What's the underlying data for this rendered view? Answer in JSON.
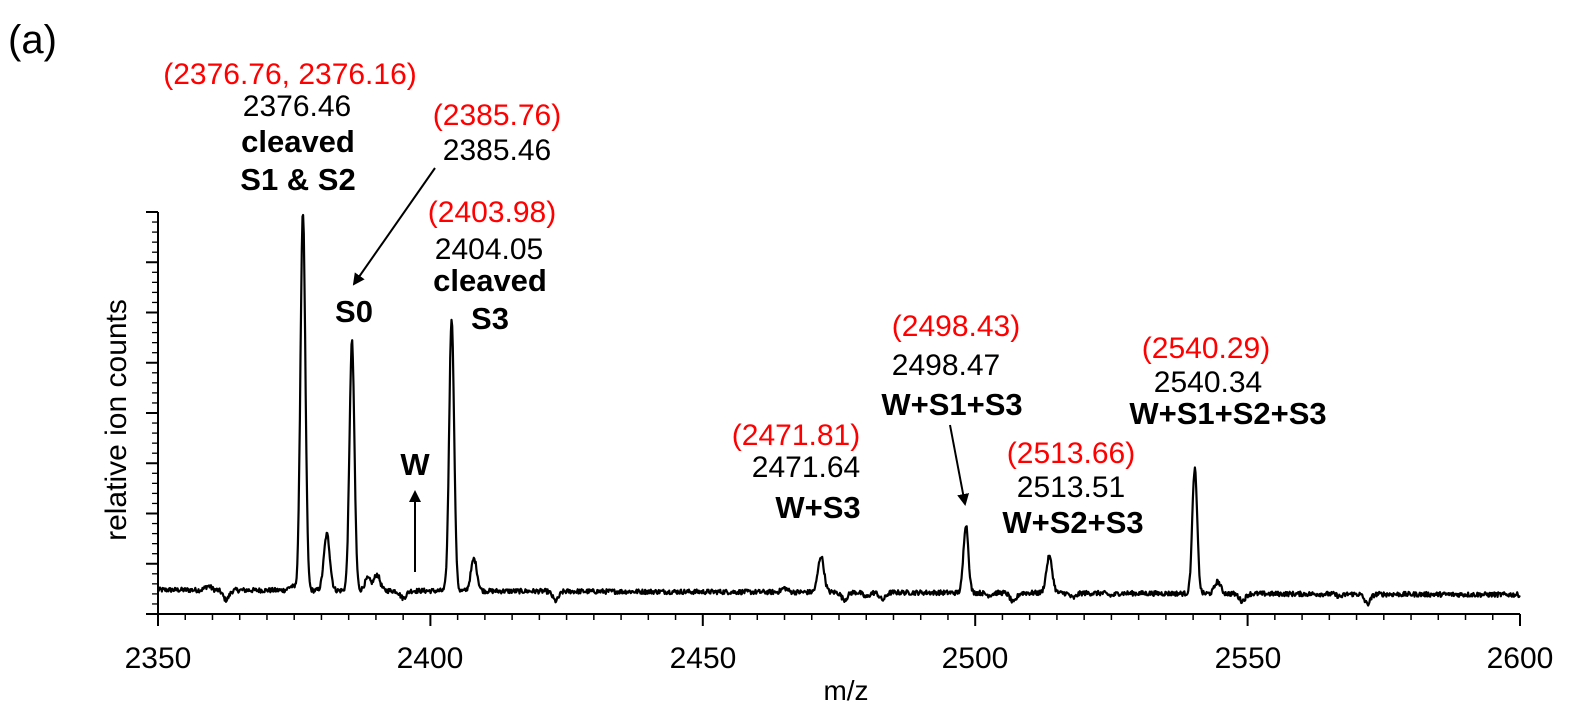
{
  "panel_label": "(a)",
  "chart_data": {
    "type": "line",
    "title": "",
    "xlabel": "m/z",
    "ylabel": "relative ion counts",
    "xlim": [
      2350,
      2600
    ],
    "ylim": [
      0,
      1.0
    ],
    "x_ticks": [
      "2350",
      "2400",
      "2450",
      "2500",
      "2550",
      "2600"
    ],
    "grid": false,
    "legend": "none",
    "colors": {
      "trace": "#000000",
      "predicted": "#ff0000",
      "measured": "#000000"
    },
    "baseline": 0.06,
    "peaks": [
      {
        "mz": 2355.5,
        "height": 0.06
      },
      {
        "mz": 2359.2,
        "height": 0.07
      },
      {
        "mz": 2362.5,
        "height": 0.02
      },
      {
        "mz": 2374.5,
        "height": 0.07
      },
      {
        "mz": 2376.6,
        "height": 1.0
      },
      {
        "mz": 2381.0,
        "height": 0.2
      },
      {
        "mz": 2385.6,
        "height": 0.68
      },
      {
        "mz": 2388.5,
        "height": 0.09
      },
      {
        "mz": 2390.2,
        "height": 0.1
      },
      {
        "mz": 2395.0,
        "height": 0.03
      },
      {
        "mz": 2403.9,
        "height": 0.74
      },
      {
        "mz": 2408.0,
        "height": 0.14
      },
      {
        "mz": 2423.0,
        "height": 0.02
      },
      {
        "mz": 2465.0,
        "height": 0.07
      },
      {
        "mz": 2471.7,
        "height": 0.15
      },
      {
        "mz": 2476.0,
        "height": 0.03
      },
      {
        "mz": 2480.0,
        "height": 0.04
      },
      {
        "mz": 2483.0,
        "height": 0.03
      },
      {
        "mz": 2498.3,
        "height": 0.23
      },
      {
        "mz": 2502.5,
        "height": 0.05
      },
      {
        "mz": 2507.0,
        "height": 0.02
      },
      {
        "mz": 2513.6,
        "height": 0.15
      },
      {
        "mz": 2518.0,
        "height": 0.04
      },
      {
        "mz": 2525.0,
        "height": 0.05
      },
      {
        "mz": 2540.3,
        "height": 0.37
      },
      {
        "mz": 2544.5,
        "height": 0.09
      },
      {
        "mz": 2549.0,
        "height": 0.03
      },
      {
        "mz": 2567.0,
        "height": 0.05
      },
      {
        "mz": 2572.0,
        "height": 0.02
      }
    ],
    "annotations": [
      {
        "id": "cleaved-s1-s2",
        "predicted": "(2376.76, 2376.16)",
        "measured": "2376.46",
        "labels": [
          "cleaved",
          "S1 & S2"
        ]
      },
      {
        "id": "s0",
        "predicted": "(2385.76)",
        "measured": "2385.46",
        "labels": [
          "S0"
        ]
      },
      {
        "id": "cleaved-s3",
        "predicted": "(2403.98)",
        "measured": "2404.05",
        "labels": [
          "cleaved",
          "S3"
        ]
      },
      {
        "id": "w",
        "labels": [
          "W"
        ]
      },
      {
        "id": "w-s3",
        "predicted": "(2471.81)",
        "measured": "2471.64",
        "labels": [
          "W+S3"
        ]
      },
      {
        "id": "w-s1-s3",
        "predicted": "(2498.43)",
        "measured": "2498.47",
        "labels": [
          "W+S1+S3"
        ]
      },
      {
        "id": "w-s2-s3",
        "predicted": "(2513.66)",
        "measured": "2513.51",
        "labels": [
          "W+S2+S3"
        ]
      },
      {
        "id": "w-s1-s2-s3",
        "predicted": "(2540.29)",
        "measured": "2540.34",
        "labels": [
          "W+S1+S2+S3"
        ]
      }
    ]
  }
}
